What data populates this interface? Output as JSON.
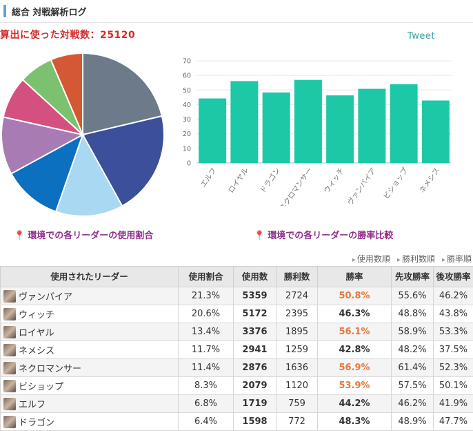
{
  "header": {
    "title": "総合 対戦解析ログ"
  },
  "battles_text": "算出に使った対戦数：25120",
  "tweet_label": "Tweet",
  "pie_caption": "環境での各リーダーの使用割合",
  "bar_caption": "環境での各リーダーの勝率比較",
  "sort_links": [
    "使用数順",
    "勝利数順",
    "勝率順"
  ],
  "table": {
    "headers": [
      "使用されたリーダー",
      "使用割合",
      "使用数",
      "勝利数",
      "勝率",
      "先攻勝率",
      "後攻勝率"
    ],
    "rows": [
      {
        "leader": "ヴァンパイア",
        "usage": "21.3%",
        "count": "5359",
        "wins": "2724",
        "winrate": "50.8%",
        "first": "55.6%",
        "second": "46.2%",
        "hi": true
      },
      {
        "leader": "ウィッチ",
        "usage": "20.6%",
        "count": "5172",
        "wins": "2395",
        "winrate": "46.3%",
        "first": "48.8%",
        "second": "43.8%",
        "hi": false
      },
      {
        "leader": "ロイヤル",
        "usage": "13.4%",
        "count": "3376",
        "wins": "1895",
        "winrate": "56.1%",
        "first": "58.9%",
        "second": "53.3%",
        "hi": true
      },
      {
        "leader": "ネメシス",
        "usage": "11.7%",
        "count": "2941",
        "wins": "1259",
        "winrate": "42.8%",
        "first": "48.2%",
        "second": "37.5%",
        "hi": false
      },
      {
        "leader": "ネクロマンサー",
        "usage": "11.4%",
        "count": "2876",
        "wins": "1636",
        "winrate": "56.9%",
        "first": "61.4%",
        "second": "52.3%",
        "hi": true
      },
      {
        "leader": "ビショップ",
        "usage": "8.3%",
        "count": "2079",
        "wins": "1120",
        "winrate": "53.9%",
        "first": "57.5%",
        "second": "50.1%",
        "hi": true
      },
      {
        "leader": "エルフ",
        "usage": "6.8%",
        "count": "1719",
        "wins": "759",
        "winrate": "44.2%",
        "first": "46.2%",
        "second": "41.9%",
        "hi": false
      },
      {
        "leader": "ドラゴン",
        "usage": "6.4%",
        "count": "1598",
        "wins": "772",
        "winrate": "48.3%",
        "first": "48.9%",
        "second": "47.7%",
        "hi": false
      }
    ]
  },
  "chart_data": [
    {
      "type": "pie",
      "title": "環境での各リーダーの使用割合",
      "labels": [
        "ヴァンパイア",
        "ウィッチ",
        "ロイヤル",
        "ネメシス",
        "ネクロマンサー",
        "ビショップ",
        "エルフ",
        "ドラゴン"
      ],
      "values": [
        21.3,
        20.6,
        13.4,
        11.7,
        11.4,
        8.3,
        6.8,
        6.4
      ],
      "colors": [
        "#6c7a89",
        "#3b4f9a",
        "#a9d8f2",
        "#0b70c0",
        "#a97bb5",
        "#d4507f",
        "#7cc170",
        "#d45834"
      ]
    },
    {
      "type": "bar",
      "title": "環境での各リーダーの勝率比較",
      "categories": [
        "エルフ",
        "ロイヤル",
        "ドラゴン",
        "ネクロマンサー",
        "ウィッチ",
        "ヴァンパイア",
        "ビショップ",
        "ネメシス"
      ],
      "values": [
        44.2,
        56.1,
        48.3,
        56.9,
        46.3,
        50.8,
        53.9,
        42.8
      ],
      "ylim": [
        0,
        70
      ],
      "yticks": [
        0,
        10,
        20,
        30,
        40,
        50,
        60,
        70
      ],
      "color": "#1cc8a6",
      "grid": true
    }
  ]
}
